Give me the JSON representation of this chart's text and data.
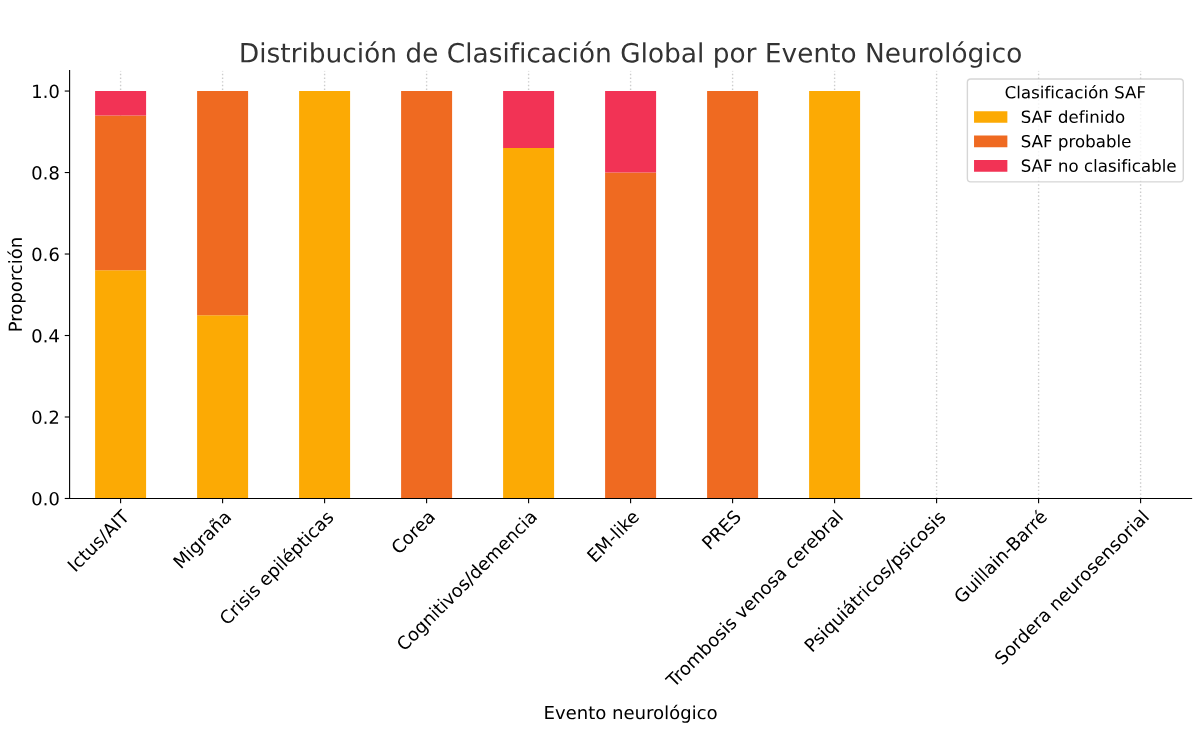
{
  "chart_data": {
    "type": "bar",
    "stacked": true,
    "title": "Distribución de Clasificación Global por Evento Neurológico",
    "xlabel": "Evento neurológico",
    "ylabel": "Proporción",
    "legend_title": "Clasificación SAF",
    "legend": "top right",
    "grid": "x",
    "categories": [
      "Ictus/AIT",
      "Migraña",
      "Crisis epilépticas",
      "Corea",
      "Cognitivos/demencia",
      "EM-like",
      "PRES",
      "Trombosis venosa cerebral",
      "Psiquiátricos/psicosis",
      "Guillain-Barré",
      "Sordera neurosensorial"
    ],
    "ylim": [
      0,
      1.05
    ],
    "yticks": [
      {
        "value": 0,
        "label": "0.0"
      },
      {
        "value": 0.2,
        "label": "0.2"
      },
      {
        "value": 0.4,
        "label": "0.4"
      },
      {
        "value": 0.6,
        "label": "0.6"
      },
      {
        "value": 0.8,
        "label": "0.8"
      },
      {
        "value": 1,
        "label": "1.0"
      }
    ],
    "series": [
      {
        "name": "SAF definido",
        "color": "#fcaa04",
        "values": [
          0.56,
          0.45,
          1.0,
          0,
          0.86,
          0,
          0,
          1.0,
          0,
          0,
          0
        ]
      },
      {
        "name": "SAF probable",
        "color": "#ef6a21",
        "values": [
          0.38,
          0.55,
          0,
          1.0,
          0,
          0.8,
          1.0,
          0,
          0,
          0,
          0
        ]
      },
      {
        "name": "SAF no clasificable",
        "color": "#f23355",
        "values": [
          0.06,
          0,
          0,
          0,
          0.14,
          0.2,
          0,
          0,
          0,
          0,
          0
        ]
      }
    ]
  }
}
